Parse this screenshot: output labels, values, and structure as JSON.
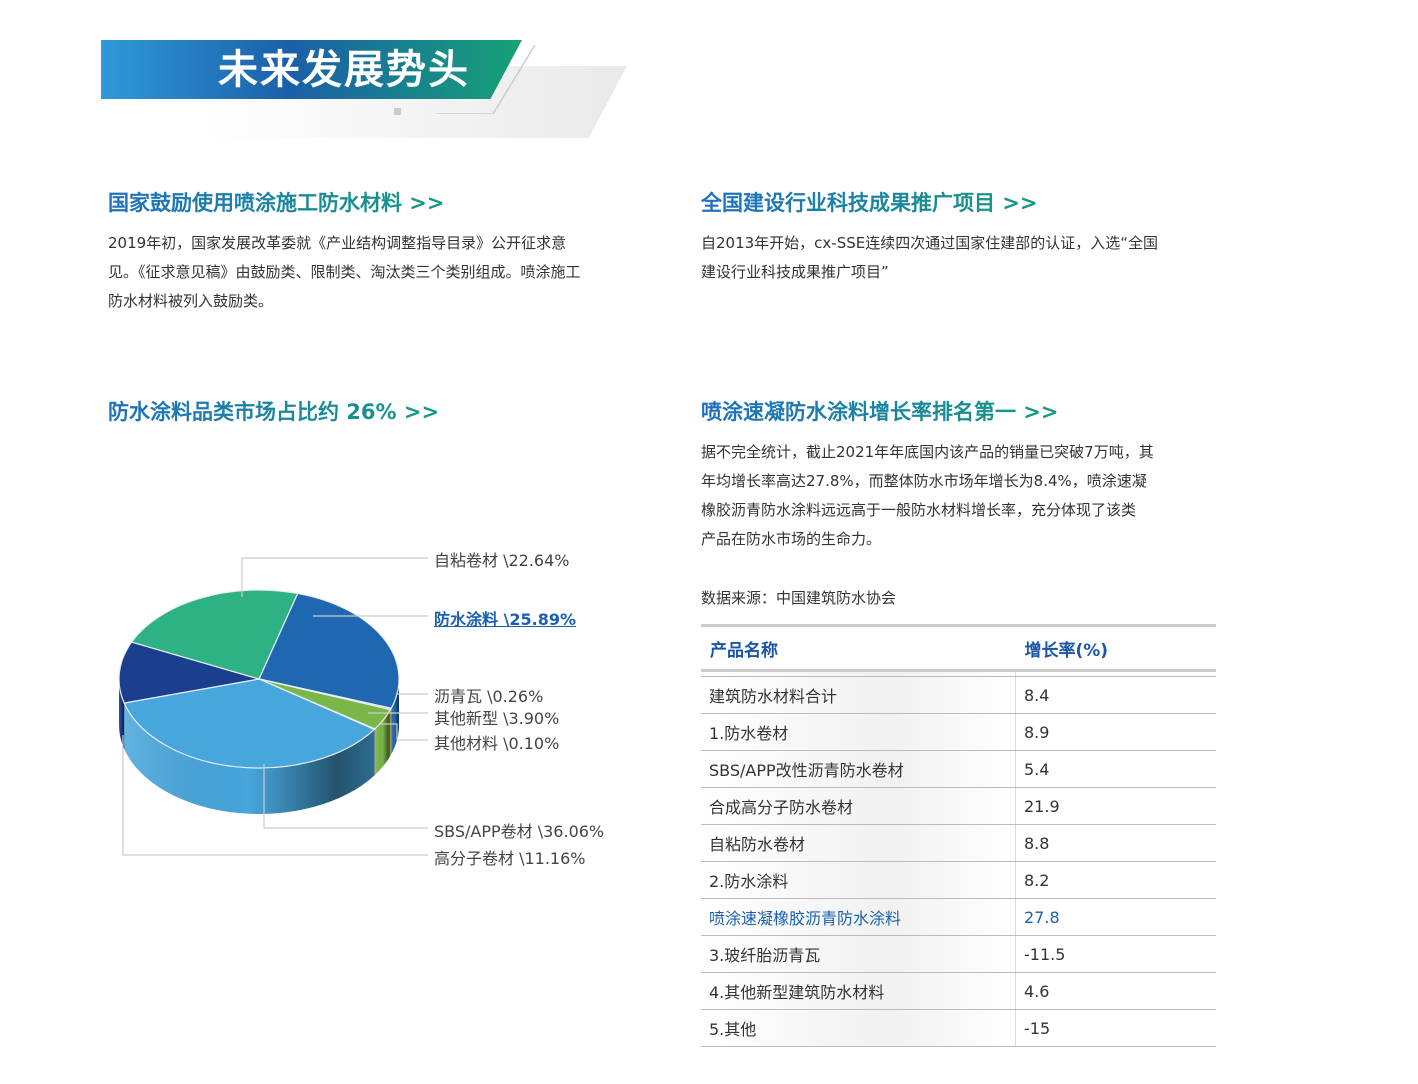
{
  "banner": {
    "title": "未来发展势头"
  },
  "sections": [
    {
      "heading": "国家鼓励使用喷涂施工防水材料  >>",
      "text": [
        "2019年初，国家发展改革委就《产业结构调整指导目录》公开征求意",
        "见。《征求意见稿》由鼓励类、限制类、淘汰类三个类别组成。喷涂施工",
        "防水材料被列入鼓励类。"
      ]
    },
    {
      "heading": "全国建设行业科技成果推广项目  >>",
      "text": [
        "自2013年开始，cx-SSE连续四次通过国家住建部的认证，入选“全国",
        "建设行业科技成果推广项目”"
      ]
    },
    {
      "heading": "防水涂料品类市场占比约 26%  >>"
    },
    {
      "heading": "喷涂速凝防水涂料增长率排名第一  >>",
      "text": [
        "据不完全统计，截止2021年年底国内该产品的销量已突破7万吨，其",
        "年均增长率高达27.8%，而整体防水市场年增长为8.4%，喷涂速凝",
        "橡胶沥青防水涂料远远高于一般防水材料增长率，充分体现了该类",
        "产品在防水市场的生命力。"
      ],
      "source": "数据来源：中国建筑防水协会"
    }
  ],
  "chart_data": {
    "type": "pie",
    "style": "3d",
    "slices": [
      {
        "label": "防水涂料 \\25.89%",
        "name": "防水涂料",
        "value": 25.89,
        "color": "#2067b2",
        "highlight": true
      },
      {
        "label": "沥青瓦 \\0.26%",
        "name": "沥青瓦",
        "value": 0.26,
        "color": "#f0a050"
      },
      {
        "label": "其他新型 \\3.90%",
        "name": "其他新型",
        "value": 3.9,
        "color": "#7ab648"
      },
      {
        "label": "其他材料 \\0.10%",
        "name": "其他材料",
        "value": 0.1,
        "color": "#b0b0b0"
      },
      {
        "label": "SBS/APP卷材 \\36.06%",
        "name": "SBS/APP卷材",
        "value": 36.06,
        "color": "#47a6dc"
      },
      {
        "label": "高分子卷材 \\11.16%",
        "name": "高分子卷材",
        "value": 11.16,
        "color": "#1c3e8e"
      },
      {
        "label": "自粘卷材 \\22.64%",
        "name": "自粘卷材",
        "value": 22.64,
        "color": "#2db383"
      }
    ]
  },
  "table": {
    "headers": [
      "产品名称",
      "增长率(%)"
    ],
    "rows": [
      [
        "建筑防水材料合计",
        "8.4"
      ],
      [
        "1.防水卷材",
        "8.9"
      ],
      [
        "SBS/APP改性沥青防水卷材",
        "5.4"
      ],
      [
        "合成高分子防水卷材",
        "21.9"
      ],
      [
        "自粘防水卷材",
        "8.8"
      ],
      [
        "2.防水涂料",
        "8.2"
      ],
      [
        "喷涂速凝橡胶沥青防水涂料",
        "27.8"
      ],
      [
        "3.玻纤胎沥青瓦",
        "-11.5"
      ],
      [
        "4.其他新型建筑防水材料",
        "4.6"
      ],
      [
        "5.其他",
        "-15"
      ]
    ],
    "highlight_row": 6
  }
}
